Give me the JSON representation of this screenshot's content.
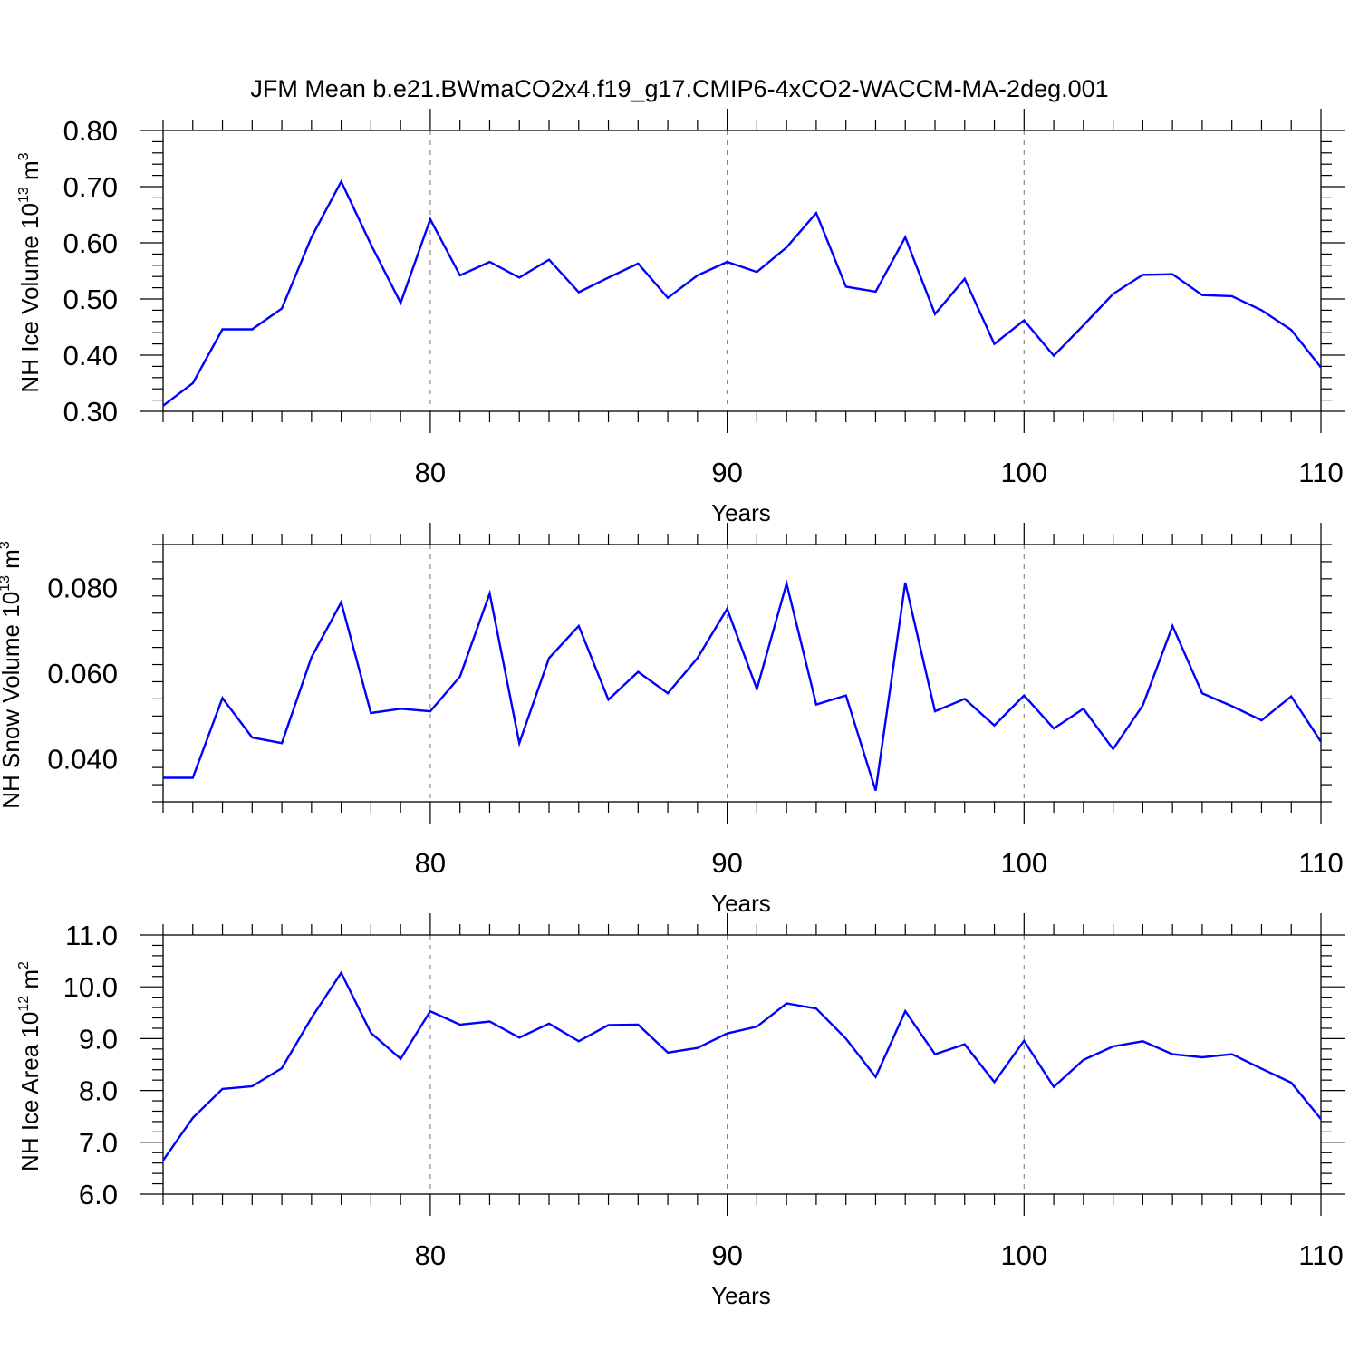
{
  "title": "JFM Mean b.e21.BWmaCO2x4.f19_g17.CMIP6-4xCO2-WACCM-MA-2deg.001",
  "colors": {
    "line": "#0000ff",
    "frame": "#000000",
    "refline": "#888888"
  },
  "chart_data": [
    {
      "type": "line",
      "xlabel": "Years",
      "ylabel": {
        "text": "NH Ice Volume 10",
        "exp": "13",
        "unit": " m",
        "unit_exp": "3"
      },
      "xlim": [
        71,
        110
      ],
      "ylim": [
        0.3,
        0.8
      ],
      "xticks": [
        80,
        90,
        100,
        110
      ],
      "yticks": [
        "0.30",
        "0.40",
        "0.50",
        "0.60",
        "0.70",
        "0.80"
      ],
      "ref_lines_x": [
        80,
        90,
        100
      ],
      "x": [
        71,
        72,
        73,
        74,
        75,
        76,
        77,
        78,
        79,
        80,
        81,
        82,
        83,
        84,
        85,
        86,
        87,
        88,
        89,
        90,
        91,
        92,
        93,
        94,
        95,
        96,
        97,
        98,
        99,
        100,
        101,
        102,
        103,
        104,
        105,
        106,
        107,
        108,
        109,
        110
      ],
      "values": [
        0.31,
        0.35,
        0.446,
        0.446,
        0.483,
        0.61,
        0.709,
        0.597,
        0.493,
        0.642,
        0.542,
        0.566,
        0.538,
        0.57,
        0.512,
        0.538,
        0.563,
        0.502,
        0.542,
        0.566,
        0.548,
        0.592,
        0.653,
        0.522,
        0.513,
        0.61,
        0.473,
        0.536,
        0.42,
        0.462,
        0.399,
        0.453,
        0.509,
        0.543,
        0.544,
        0.507,
        0.505,
        0.48,
        0.445,
        0.378
      ]
    },
    {
      "type": "line",
      "xlabel": "Years",
      "ylabel": {
        "text": "NH Snow Volume 10",
        "exp": "13",
        "unit": " m",
        "unit_exp": "3"
      },
      "xlim": [
        71,
        110
      ],
      "ylim": [
        0.03,
        0.09
      ],
      "xticks": [
        80,
        90,
        100,
        110
      ],
      "yticks": [
        "0.040",
        "0.060",
        "0.080"
      ],
      "ref_lines_x": [
        80,
        90,
        100
      ],
      "x": [
        71,
        72,
        73,
        74,
        75,
        76,
        77,
        78,
        79,
        80,
        81,
        82,
        83,
        84,
        85,
        86,
        87,
        88,
        89,
        90,
        91,
        92,
        93,
        94,
        95,
        96,
        97,
        98,
        99,
        100,
        101,
        102,
        103,
        104,
        105,
        106,
        107,
        108,
        109,
        110
      ],
      "values": [
        0.0356,
        0.0356,
        0.0542,
        0.045,
        0.0437,
        0.0637,
        0.0765,
        0.0507,
        0.0517,
        0.0511,
        0.0592,
        0.0786,
        0.0437,
        0.0635,
        0.071,
        0.0538,
        0.0603,
        0.0553,
        0.0635,
        0.075,
        0.0563,
        0.0809,
        0.0527,
        0.0548,
        0.0326,
        0.0811,
        0.0511,
        0.054,
        0.0478,
        0.0548,
        0.0471,
        0.0517,
        0.0423,
        0.0525,
        0.071,
        0.0553,
        0.0523,
        0.049,
        0.0546,
        0.044
      ]
    },
    {
      "type": "line",
      "xlabel": "Years",
      "ylabel": {
        "text": "NH Ice Area 10",
        "exp": "12",
        "unit": " m",
        "unit_exp": "2"
      },
      "xlim": [
        71,
        110
      ],
      "ylim": [
        6.0,
        11.0
      ],
      "xticks": [
        80,
        90,
        100,
        110
      ],
      "yticks": [
        "6.0",
        "7.0",
        "8.0",
        "9.0",
        "10.0",
        "11.0"
      ],
      "ref_lines_x": [
        80,
        90,
        100
      ],
      "x": [
        71,
        72,
        73,
        74,
        75,
        76,
        77,
        78,
        79,
        80,
        81,
        82,
        83,
        84,
        85,
        86,
        87,
        88,
        89,
        90,
        91,
        92,
        93,
        94,
        95,
        96,
        97,
        98,
        99,
        100,
        101,
        102,
        103,
        104,
        105,
        106,
        107,
        108,
        109,
        110
      ],
      "values": [
        6.65,
        7.47,
        8.03,
        8.08,
        8.43,
        9.4,
        10.27,
        9.11,
        8.61,
        9.53,
        9.27,
        9.33,
        9.02,
        9.29,
        8.95,
        9.26,
        9.27,
        8.73,
        8.82,
        9.1,
        9.23,
        9.68,
        9.58,
        9.0,
        8.26,
        9.53,
        8.7,
        8.89,
        8.16,
        8.96,
        8.07,
        8.59,
        8.85,
        8.95,
        8.7,
        8.64,
        8.7,
        8.42,
        8.15,
        7.45
      ]
    }
  ]
}
